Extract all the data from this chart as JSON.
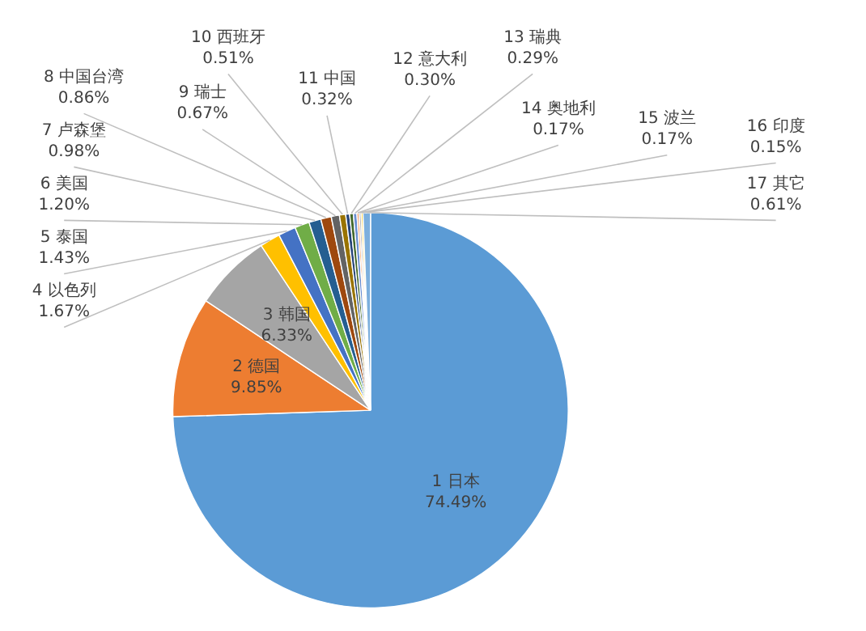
{
  "chart_data": {
    "type": "pie",
    "categories": [
      "1 日本",
      "2 德国",
      "3 韩国",
      "4 以色列",
      "5 泰国",
      "6 美国",
      "7 卢森堡",
      "8 中国台湾",
      "9 瑞士",
      "10 西班牙",
      "11 中国",
      "12 意大利",
      "13 瑞典",
      "14 奥地利",
      "15 波兰",
      "16 印度",
      "17 其它"
    ],
    "values": [
      74.49,
      9.85,
      6.33,
      1.67,
      1.43,
      1.2,
      0.98,
      0.86,
      0.67,
      0.51,
      0.32,
      0.3,
      0.29,
      0.17,
      0.17,
      0.15,
      0.61
    ],
    "value_labels": [
      "74.49%",
      "9.85%",
      "6.33%",
      "1.67%",
      "1.43%",
      "1.20%",
      "0.98%",
      "0.86%",
      "0.67%",
      "0.51%",
      "0.32%",
      "0.30%",
      "0.29%",
      "0.17%",
      "0.17%",
      "0.15%",
      "0.61%"
    ],
    "colors": [
      "#5b9bd5",
      "#ed7d31",
      "#a5a5a5",
      "#ffc000",
      "#4472c4",
      "#70ad47",
      "#255e91",
      "#9e480e",
      "#636363",
      "#997300",
      "#264478",
      "#43682b",
      "#698ed0",
      "#f1975a",
      "#b7b7b7",
      "#ffcd33",
      "#7cafdd"
    ]
  }
}
